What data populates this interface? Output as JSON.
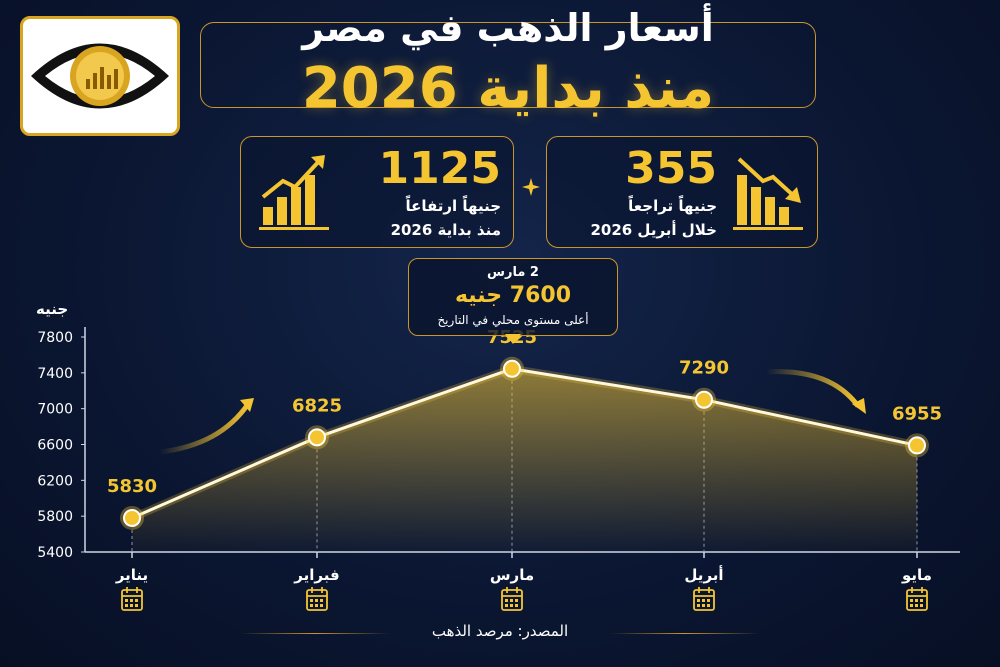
{
  "header": {
    "title_line1": "أسعار الذهب في مصر",
    "title_line2": "منذ بداية 2026"
  },
  "stats": {
    "rise": {
      "value": "1125",
      "line1": "جنيهاً ارتفاعاً",
      "line2": "منذ بداية 2026",
      "icon": "rising-bars-icon"
    },
    "fall": {
      "value": "355",
      "line1": "جنيهاً تراجعاً",
      "line2": "خلال أبريل 2026",
      "icon": "falling-bars-icon"
    }
  },
  "callout": {
    "date": "2 مارس",
    "value": "7600 جنيه",
    "note": "أعلى مستوى محلي في التاريخ"
  },
  "source": "المصدر: مرصد الذهب",
  "colors": {
    "gold": "#f5c531",
    "background": "#0b1733",
    "frame": "#c9962a"
  },
  "chart_data": {
    "type": "line",
    "ylabel": "جنيه",
    "categories": [
      "يناير",
      "فبراير",
      "مارس",
      "أبريل",
      "مايو"
    ],
    "values": [
      5830,
      6825,
      7525,
      7290,
      6955
    ],
    "plotted_values": [
      5780,
      6680,
      7445,
      7100,
      6590
    ],
    "ylim": [
      5400,
      7800
    ],
    "yticks": [
      5400,
      5800,
      6200,
      6600,
      7000,
      7400,
      7800
    ],
    "grid": false,
    "calendar_icons": true
  }
}
